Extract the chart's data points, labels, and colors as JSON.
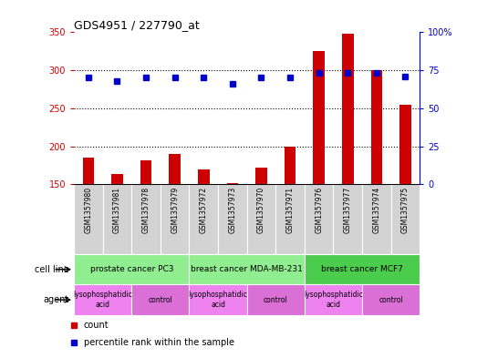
{
  "title": "GDS4951 / 227790_at",
  "samples": [
    "GSM1357980",
    "GSM1357981",
    "GSM1357978",
    "GSM1357979",
    "GSM1357972",
    "GSM1357973",
    "GSM1357970",
    "GSM1357971",
    "GSM1357976",
    "GSM1357977",
    "GSM1357974",
    "GSM1357975"
  ],
  "counts": [
    185,
    164,
    182,
    190,
    170,
    152,
    172,
    200,
    325,
    348,
    300,
    255
  ],
  "percentile_ranks": [
    70,
    68,
    70,
    70,
    70,
    66,
    70,
    70,
    73,
    73,
    73,
    71
  ],
  "ylim_left": [
    150,
    350
  ],
  "ylim_right": [
    0,
    100
  ],
  "yticks_left": [
    150,
    200,
    250,
    300,
    350
  ],
  "yticks_right": [
    0,
    25,
    50,
    75,
    100
  ],
  "ytick_right_labels": [
    "0",
    "25",
    "50",
    "75",
    "100%"
  ],
  "cell_lines": [
    {
      "label": "prostate cancer PC3",
      "start": 0,
      "end": 4,
      "color": "#90ee90"
    },
    {
      "label": "breast cancer MDA-MB-231",
      "start": 4,
      "end": 8,
      "color": "#90ee90"
    },
    {
      "label": "breast cancer MCF7",
      "start": 8,
      "end": 12,
      "color": "#4ccc4c"
    }
  ],
  "agents": [
    {
      "label": "lysophosphatidic\nacid",
      "start": 0,
      "end": 2,
      "color": "#ee82ee"
    },
    {
      "label": "control",
      "start": 2,
      "end": 4,
      "color": "#da70d6"
    },
    {
      "label": "lysophosphatidic\nacid",
      "start": 4,
      "end": 6,
      "color": "#ee82ee"
    },
    {
      "label": "control",
      "start": 6,
      "end": 8,
      "color": "#da70d6"
    },
    {
      "label": "lysophosphatidic\nacid",
      "start": 8,
      "end": 10,
      "color": "#ee82ee"
    },
    {
      "label": "control",
      "start": 10,
      "end": 12,
      "color": "#da70d6"
    }
  ],
  "bar_color": "#cc0000",
  "dot_color": "#0000cc",
  "bg_color": "#ffffff",
  "left_axis_color": "#cc0000",
  "right_axis_color": "#0000cc",
  "sample_bg_color": "#d3d3d3",
  "legend_labels": [
    "count",
    "percentile rank within the sample"
  ],
  "row_labels": [
    "cell line",
    "agent"
  ]
}
